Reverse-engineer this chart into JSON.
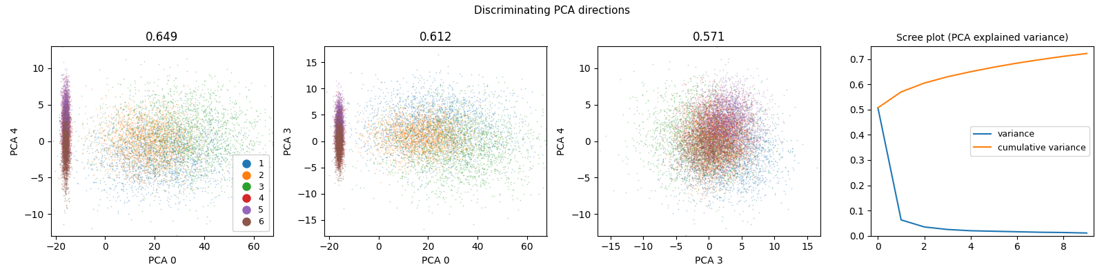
{
  "suptitle": "Discriminating PCA directions",
  "scatter_plots": [
    {
      "title": "0.649",
      "xlabel": "PCA 0",
      "ylabel": "PCA 4",
      "xlim": [
        -22,
        68
      ],
      "ylim": [
        -13,
        13
      ]
    },
    {
      "title": "0.612",
      "xlabel": "PCA 0",
      "ylabel": "PCA 3",
      "xlim": [
        -22,
        68
      ],
      "ylim": [
        -18,
        18
      ]
    },
    {
      "title": "0.571",
      "xlabel": "PCA 3",
      "ylabel": "PCA 4",
      "xlim": [
        -17,
        17
      ],
      "ylim": [
        -13,
        13
      ]
    }
  ],
  "classes": [
    1,
    2,
    3,
    4,
    5,
    6
  ],
  "class_colors": [
    "#1f77b4",
    "#ff7f0e",
    "#2ca02c",
    "#d62728",
    "#9467bd",
    "#8c564b"
  ],
  "n_points_per_class": 2000,
  "scree_title": "Scree plot (PCA explained variance)",
  "variance": [
    0.507,
    0.063,
    0.035,
    0.025,
    0.02,
    0.018,
    0.016,
    0.014,
    0.013,
    0.011
  ],
  "cumulative_variance": [
    0.507,
    0.57,
    0.605,
    0.63,
    0.65,
    0.668,
    0.684,
    0.698,
    0.711,
    0.722
  ],
  "variance_color": "#1f77b4",
  "cumvar_color": "#ff7f0e",
  "legend_labels": [
    "variance",
    "cumulative variance"
  ],
  "marker_size": 1.5,
  "marker_alpha": 0.35
}
